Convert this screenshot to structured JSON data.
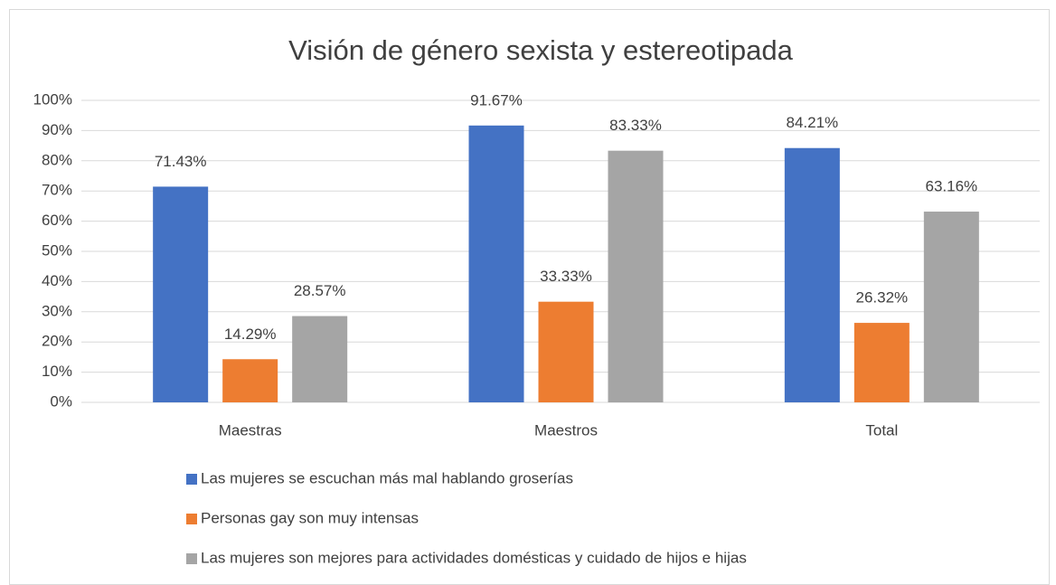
{
  "chart_data": {
    "type": "bar",
    "title": "Visión de género sexista y estereotipada",
    "categories": [
      "Maestras",
      "Maestros",
      "Total"
    ],
    "series": [
      {
        "name": "Las mujeres se escuchan más mal hablando groserías",
        "color": "#4472c4",
        "values": [
          71.43,
          91.67,
          84.21
        ],
        "value_labels": [
          "71.43%",
          "91.67%",
          "84.21%"
        ]
      },
      {
        "name": "Personas gay son muy intensas",
        "color": "#ed7d31",
        "values": [
          14.29,
          33.33,
          26.32
        ],
        "value_labels": [
          "14.29%",
          "33.33%",
          "26.32%"
        ]
      },
      {
        "name": "Las mujeres son mejores para actividades domésticas y cuidado de hijos e hijas",
        "color": "#a5a5a5",
        "values": [
          28.57,
          83.33,
          63.16
        ],
        "value_labels": [
          "28.57%",
          "83.33%",
          "63.16%"
        ]
      }
    ],
    "ylim": [
      0,
      100
    ],
    "yticks": [
      {
        "value": 0,
        "label": "0%"
      },
      {
        "value": 10,
        "label": "10%"
      },
      {
        "value": 20,
        "label": "20%"
      },
      {
        "value": 30,
        "label": "30%"
      },
      {
        "value": 40,
        "label": "40%"
      },
      {
        "value": 50,
        "label": "50%"
      },
      {
        "value": 60,
        "label": "60%"
      },
      {
        "value": 70,
        "label": "70%"
      },
      {
        "value": 80,
        "label": "80%"
      },
      {
        "value": 90,
        "label": "90%"
      },
      {
        "value": 100,
        "label": "100%"
      }
    ],
    "grid": true,
    "legend": "bottom"
  }
}
